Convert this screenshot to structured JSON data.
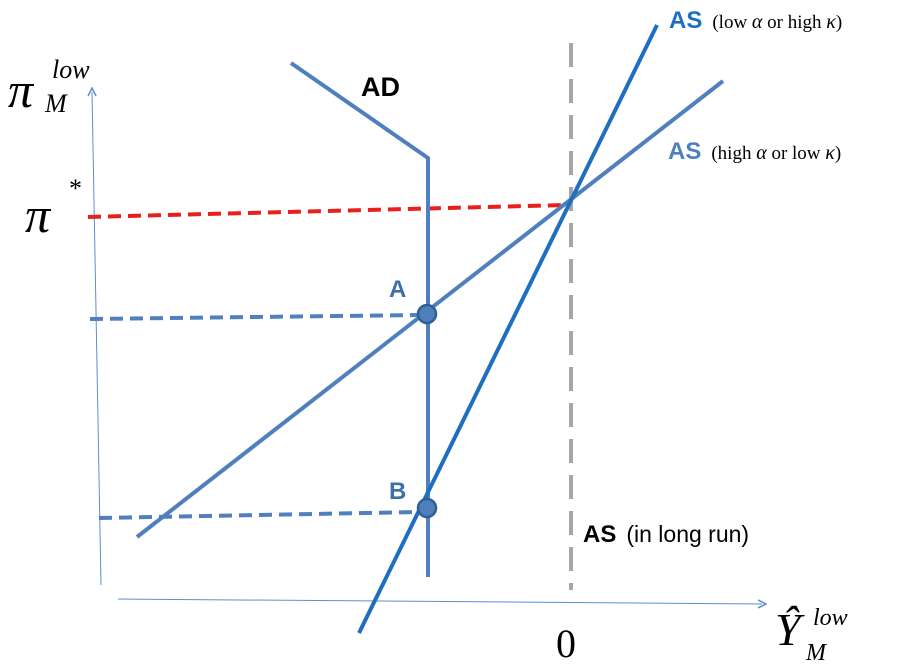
{
  "colors": {
    "axis": "#5b8fd1",
    "curve": "#4f7fbd",
    "steep_curve": "#1f6fc0",
    "label_blue": "#3f6fa8",
    "target_line": "#e8201c",
    "long_run": "#a6a6a6",
    "text": "#000000"
  },
  "axes": {
    "y_label_symbol": "π",
    "y_label_sup": "low",
    "y_label_sub": "M",
    "x_label_symbol": "Ŷ",
    "x_label_sup": "low",
    "x_label_sub": "M",
    "origin_label": "0"
  },
  "target": {
    "symbol": "π",
    "sup": "*"
  },
  "curves": {
    "ad_label": "AD",
    "as_steep_label": "AS",
    "as_steep_note_pre": "(low ",
    "as_steep_alpha": "α",
    "as_steep_note_mid": " or high ",
    "as_steep_kappa": "κ",
    "as_steep_note_post": ")",
    "as_flat_label": "AS",
    "as_flat_note_pre": "(high ",
    "as_flat_alpha": "α",
    "as_flat_note_mid": " or low ",
    "as_flat_kappa": "κ",
    "as_flat_note_post": ")",
    "as_long_run_label": "AS",
    "as_long_run_note": "(in long run)"
  },
  "points": {
    "a_label": "A",
    "b_label": "B"
  }
}
